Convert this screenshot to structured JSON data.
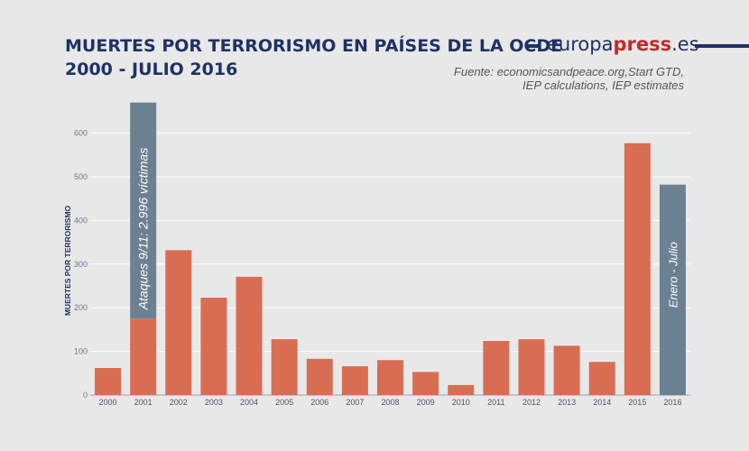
{
  "header": {
    "title_line1": "MUERTES POR TERRORISMO EN PAÍSES DE LA OCDE",
    "title_line2": "2000 - JULIO 2016",
    "brand_part1": "europa",
    "brand_part2": "press",
    "brand_part3": ".es",
    "source_line1": "Fuente: economicsandpeace.org,Start GTD,",
    "source_line2": "IEP calculations, IEP estimates"
  },
  "colors": {
    "bar": "#d96d53",
    "highlight": "#6b8191",
    "title": "#1f3263",
    "grid": "#ffffff",
    "tick": "#6a7a90"
  },
  "chart_data": {
    "type": "bar",
    "categories": [
      "2000",
      "2001",
      "2002",
      "2003",
      "2004",
      "2005",
      "2006",
      "2007",
      "2008",
      "2009",
      "2010",
      "2011",
      "2012",
      "2013",
      "2014",
      "2015",
      "2016"
    ],
    "values": [
      62,
      175,
      332,
      223,
      271,
      128,
      83,
      66,
      80,
      53,
      23,
      124,
      128,
      113,
      76,
      577,
      482
    ],
    "ylabel": "MUERTES POR TERRORISMO",
    "ylim": [
      0,
      680
    ],
    "yticks": [
      0,
      100,
      200,
      300,
      400,
      500,
      600
    ],
    "grid": true,
    "annotations": [
      {
        "category": "2001",
        "stacked_total": 670,
        "label": "Ataques 9/11: 2.996 víctimas"
      },
      {
        "category": "2016",
        "label": "Enero - Julio"
      }
    ]
  }
}
